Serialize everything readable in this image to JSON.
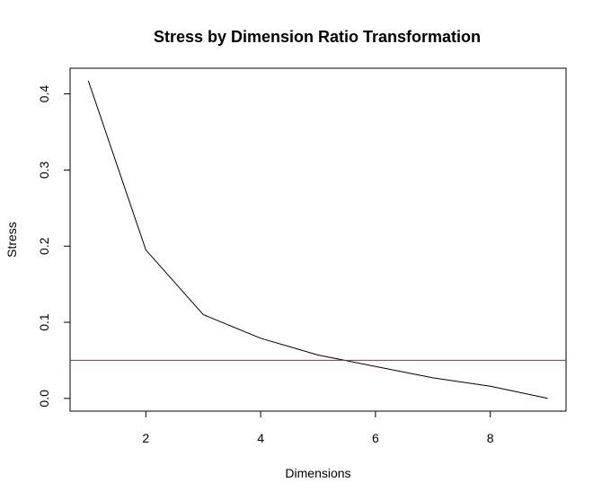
{
  "chart_data": {
    "type": "line",
    "title": "Stress by Dimension Ratio Transformation",
    "xlabel": "Dimensions",
    "ylabel": "Stress",
    "x_ticks": [
      "2",
      "4",
      "6",
      "8"
    ],
    "y_ticks": [
      "0.0",
      "0.1",
      "0.2",
      "0.3",
      "0.4"
    ],
    "xlim": [
      0.68,
      9.32
    ],
    "ylim": [
      -0.0167,
      0.4337
    ],
    "grid": false,
    "series": [
      {
        "color": "#000000",
        "x": [
          1,
          2,
          3,
          4,
          5,
          6,
          7,
          8,
          9
        ],
        "values": [
          0.417,
          0.195,
          0.11,
          0.079,
          0.057,
          0.042,
          0.027,
          0.016,
          0.0
        ]
      }
    ],
    "reference_line": {
      "y": 0.05,
      "color": "#ff0000"
    }
  }
}
